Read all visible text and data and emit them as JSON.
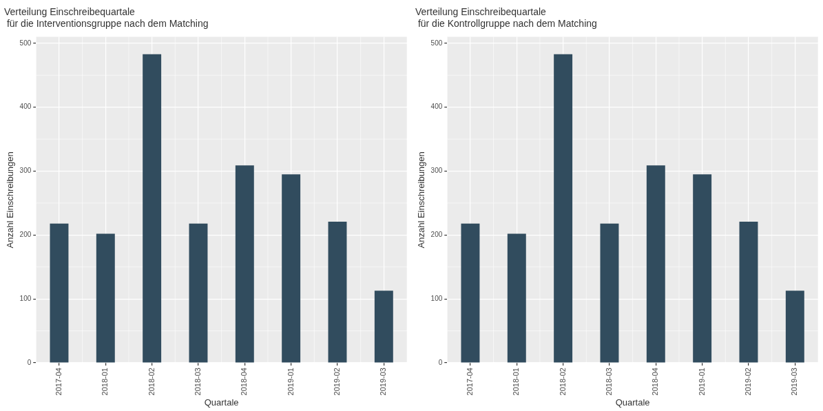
{
  "chart_data": [
    {
      "type": "bar",
      "title": "Verteilung Einschreibequartale\n für die Interventionsgruppe nach dem Matching",
      "xlabel": "Quartale",
      "ylabel": "Anzahl Einschreibungen",
      "categories": [
        "2017-04",
        "2018-01",
        "2018-02",
        "2018-03",
        "2018-04",
        "2019-01",
        "2019-02",
        "2019-03"
      ],
      "values": [
        218,
        202,
        483,
        218,
        309,
        295,
        221,
        113
      ],
      "color": "#314c5e",
      "ylim": [
        0,
        510
      ],
      "yticks": [
        0,
        100,
        200,
        300,
        400,
        500
      ],
      "grid": true,
      "legend": false
    },
    {
      "type": "bar",
      "title": "Verteilung Einschreibequartale\n für die Kontrollgruppe nach dem Matching",
      "xlabel": "Quartale",
      "ylabel": "Anzahl Einschreibungen",
      "categories": [
        "2017-04",
        "2018-01",
        "2018-02",
        "2018-03",
        "2018-04",
        "2019-01",
        "2019-02",
        "2019-03"
      ],
      "values": [
        218,
        202,
        483,
        218,
        309,
        295,
        221,
        113
      ],
      "color": "#314c5e",
      "ylim": [
        0,
        510
      ],
      "yticks": [
        0,
        100,
        200,
        300,
        400,
        500
      ],
      "grid": true,
      "legend": false
    }
  ]
}
